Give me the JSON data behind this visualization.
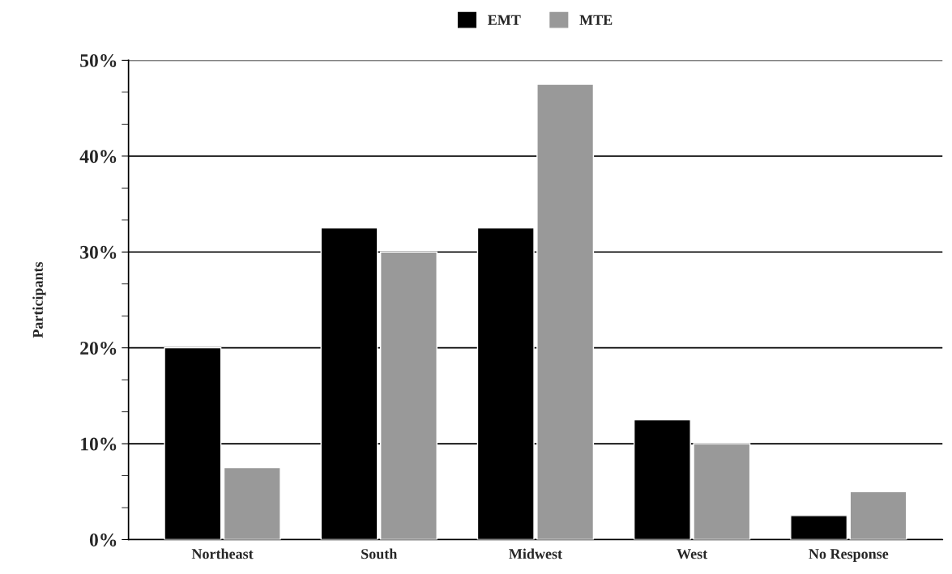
{
  "chart_data": {
    "type": "bar",
    "ylabel": "Participants",
    "categories": [
      "Northeast",
      "South",
      "Midwest",
      "West",
      "No Response"
    ],
    "series": [
      {
        "name": "EMT",
        "color": "#000000",
        "values": [
          20,
          32.5,
          32.5,
          12.5,
          2.5
        ]
      },
      {
        "name": "MTE",
        "color": "#999999",
        "values": [
          7.5,
          30,
          47.5,
          10,
          5
        ]
      }
    ],
    "ylim": [
      0,
      50
    ],
    "yticks": [
      {
        "value": 0,
        "label": "0%"
      },
      {
        "value": 3.33,
        "label": null
      },
      {
        "value": 6.67,
        "label": null
      },
      {
        "value": 10,
        "label": "10%"
      },
      {
        "value": 13.33,
        "label": null
      },
      {
        "value": 16.67,
        "label": null
      },
      {
        "value": 20,
        "label": "20%"
      },
      {
        "value": 23.33,
        "label": null
      },
      {
        "value": 26.67,
        "label": null
      },
      {
        "value": 30,
        "label": "30%"
      },
      {
        "value": 33.33,
        "label": null
      },
      {
        "value": 36.67,
        "label": null
      },
      {
        "value": 40,
        "label": "40%"
      },
      {
        "value": 43.33,
        "label": null
      },
      {
        "value": 46.67,
        "label": null
      },
      {
        "value": 50,
        "label": "50%"
      }
    ],
    "grid": "y",
    "legend": "top"
  }
}
